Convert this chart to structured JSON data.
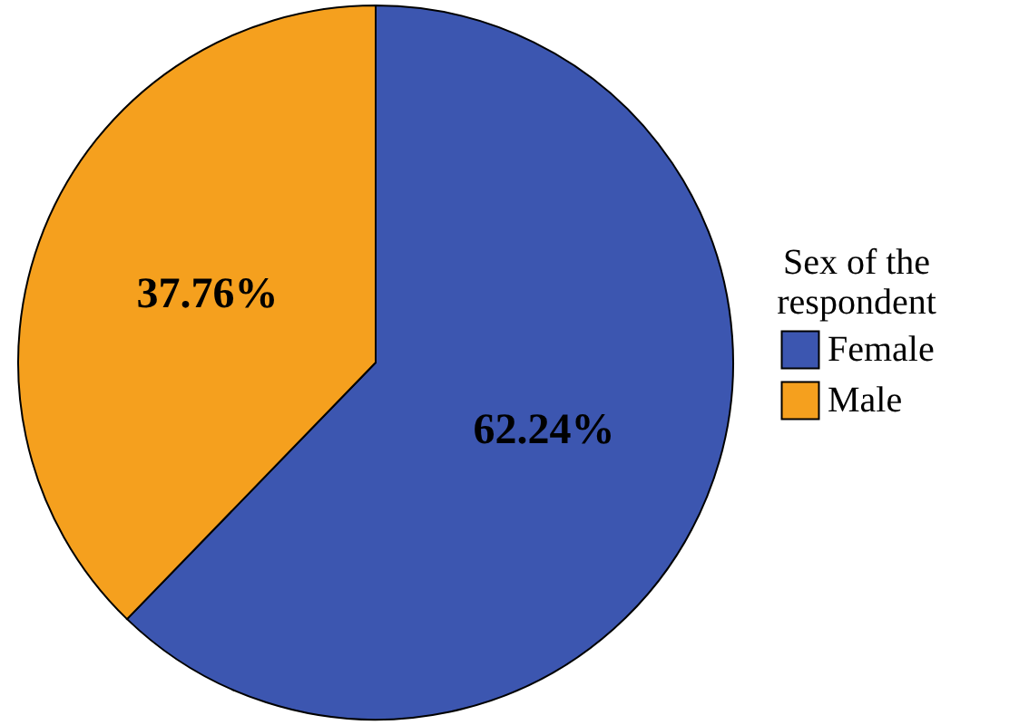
{
  "chart_data": {
    "type": "pie",
    "legend_title": "Sex of the respondent",
    "categories": [
      "Female",
      "Male"
    ],
    "values": [
      62.24,
      37.76
    ],
    "colors": [
      "#3c56b0",
      "#f5a01e"
    ],
    "value_labels": [
      "62.24%",
      "37.76%"
    ],
    "legend": "right"
  }
}
